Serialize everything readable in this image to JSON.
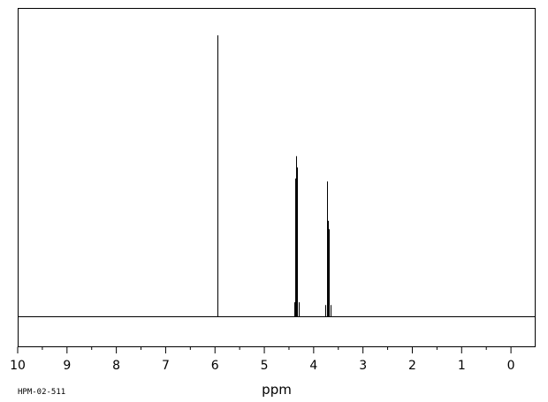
{
  "chart_data": {
    "type": "line",
    "xlabel": "ppm",
    "ylabel": "",
    "xlim": [
      10.0,
      -0.5
    ],
    "ylim": [
      -0.11,
      1.0
    ],
    "x_direction": "reversed",
    "x_ticks": [
      10,
      9,
      8,
      7,
      6,
      5,
      4,
      3,
      2,
      1,
      0
    ],
    "grid": false,
    "legend": "none",
    "peaks": [
      {
        "x": 5.95,
        "y": 1.0
      },
      {
        "x": 4.4,
        "y": 0.05
      },
      {
        "x": 4.37,
        "y": 0.49
      },
      {
        "x": 4.35,
        "y": 0.57
      },
      {
        "x": 4.33,
        "y": 0.53
      },
      {
        "x": 4.3,
        "y": 0.05
      },
      {
        "x": 3.76,
        "y": 0.04
      },
      {
        "x": 3.73,
        "y": 0.48
      },
      {
        "x": 3.71,
        "y": 0.34
      },
      {
        "x": 3.69,
        "y": 0.31
      },
      {
        "x": 3.66,
        "y": 0.04
      }
    ],
    "baseline": 0,
    "colors": {
      "line": "#000000",
      "frame": "#000000",
      "background": "#ffffff"
    }
  },
  "footer": {
    "sample_code": "HPM-02-511"
  }
}
